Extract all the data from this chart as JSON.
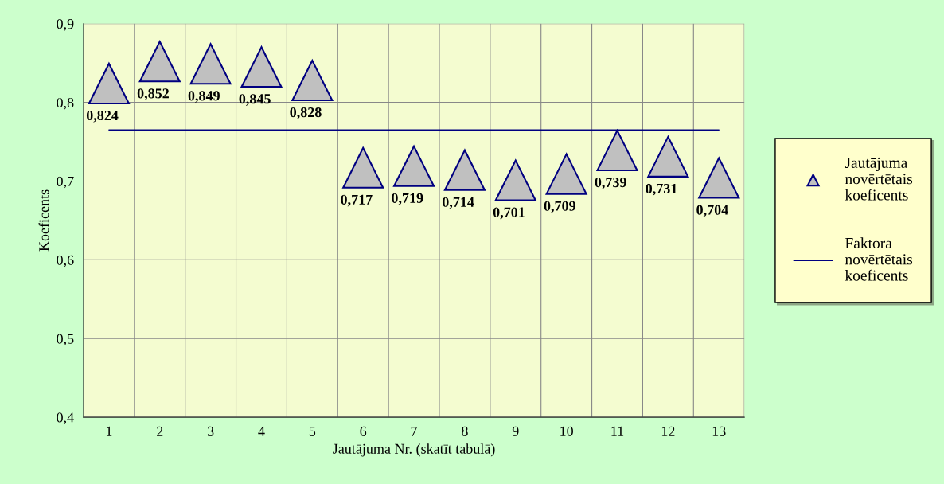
{
  "chart_data": {
    "type": "scatter",
    "xlabel": "Jautājuma Nr. (skatīt tabulā)",
    "ylabel": "Koeficents",
    "categories": [
      "1",
      "2",
      "3",
      "4",
      "5",
      "6",
      "7",
      "8",
      "9",
      "10",
      "11",
      "12",
      "13"
    ],
    "series": [
      {
        "name": "Jautājuma novērtētais koeficents",
        "color": "#c0c0c0",
        "marker": "triangle",
        "values": [
          0.824,
          0.852,
          0.849,
          0.845,
          0.828,
          0.717,
          0.719,
          0.714,
          0.701,
          0.709,
          0.739,
          0.731,
          0.704
        ],
        "value_labels": [
          "0,824",
          "0,852",
          "0,849",
          "0,845",
          "0,828",
          "0,717",
          "0,719",
          "0,714",
          "0,701",
          "0,709",
          "0,739",
          "0,731",
          "0,704"
        ]
      },
      {
        "name": "Faktora novērtētais koeficents",
        "type": "line",
        "color": "#000080",
        "marker": "none",
        "line_style": "solid",
        "values": [
          0.765,
          0.765,
          0.765,
          0.765,
          0.765,
          0.765,
          0.765,
          0.765,
          0.765,
          0.765,
          0.765,
          0.765,
          0.765
        ]
      }
    ],
    "ylim": [
      0.4,
      0.9
    ],
    "yticks": [
      {
        "value": 0.4,
        "label": "0,4"
      },
      {
        "value": 0.5,
        "label": "0,5"
      },
      {
        "value": 0.6,
        "label": "0,6"
      },
      {
        "value": 0.7,
        "label": "0,7"
      },
      {
        "value": 0.8,
        "label": "0,8"
      },
      {
        "value": 0.9,
        "label": "0,9"
      }
    ],
    "grid": true,
    "legend": "right"
  }
}
